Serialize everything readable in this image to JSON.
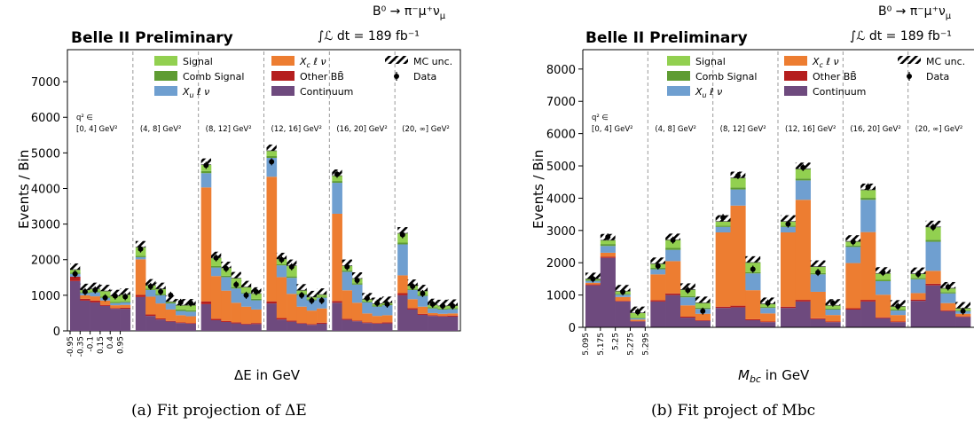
{
  "chart_data": [
    {
      "type": "bar",
      "title": "Belle II Preliminary",
      "decay": "B⁰ → π⁻μ⁺ν",
      "decay_sub": "μ",
      "luminosity": "∫ℒ dt = 189 fb⁻¹",
      "xlabel": "ΔE in GeV",
      "ylabel": "Events / Bin",
      "ylim": [
        0,
        7900
      ],
      "yticks": [
        0,
        1000,
        2000,
        3000,
        4000,
        5000,
        6000,
        7000
      ],
      "sub_ticks": [
        "-0.95",
        "-0.35",
        "-0.1",
        "0.15",
        "0.4",
        "0.95"
      ],
      "caption": "(a) Fit projection of ΔE",
      "q2_prefix": "q² ∈",
      "q2_bins": [
        "[0, 4] GeV²",
        "(4, 8] GeV²",
        "(8, 12] GeV²",
        "(12, 16] GeV²",
        "(16, 20] GeV²",
        "(20, ∞] GeV²"
      ],
      "series_names": [
        "Continuum",
        "Other BB̄",
        "Xc ℓ ν",
        "Xu ℓ ν",
        "Comb Signal",
        "Signal"
      ],
      "stack": [
        [
          [
            1400,
            120,
            0,
            80,
            40,
            80
          ],
          [
            850,
            50,
            100,
            60,
            30,
            60
          ],
          [
            800,
            50,
            120,
            110,
            30,
            70
          ],
          [
            700,
            30,
            120,
            80,
            30,
            160
          ],
          [
            620,
            20,
            80,
            60,
            30,
            170
          ],
          [
            620,
            30,
            80,
            70,
            30,
            190
          ]
        ],
        [
          [
            950,
            60,
            1000,
            60,
            40,
            240
          ],
          [
            420,
            40,
            500,
            190,
            40,
            90
          ],
          [
            320,
            30,
            420,
            230,
            40,
            140
          ],
          [
            260,
            20,
            320,
            170,
            30,
            20
          ],
          [
            220,
            20,
            200,
            120,
            40,
            120
          ],
          [
            200,
            20,
            190,
            130,
            40,
            140
          ]
        ],
        [
          [
            750,
            80,
            3200,
            400,
            60,
            180
          ],
          [
            300,
            40,
            1200,
            240,
            40,
            230
          ],
          [
            250,
            30,
            850,
            380,
            40,
            220
          ],
          [
            210,
            30,
            550,
            400,
            40,
            250
          ],
          [
            180,
            20,
            480,
            370,
            30,
            150
          ],
          [
            190,
            30,
            380,
            260,
            40,
            150
          ]
        ],
        [
          [
            770,
            60,
            3500,
            530,
            50,
            150
          ],
          [
            320,
            40,
            1150,
            330,
            30,
            150
          ],
          [
            260,
            30,
            750,
            450,
            40,
            300
          ],
          [
            200,
            20,
            460,
            330,
            30,
            100
          ],
          [
            170,
            20,
            380,
            290,
            30,
            60
          ],
          [
            200,
            30,
            400,
            300,
            30,
            60
          ]
        ],
        [
          [
            790,
            50,
            2450,
            870,
            50,
            150
          ],
          [
            310,
            30,
            800,
            520,
            40,
            130
          ],
          [
            270,
            20,
            500,
            510,
            40,
            130
          ],
          [
            220,
            20,
            250,
            310,
            30,
            60
          ],
          [
            200,
            20,
            200,
            260,
            30,
            50
          ],
          [
            210,
            30,
            200,
            280,
            30,
            40
          ]
        ],
        [
          [
            1000,
            60,
            500,
            870,
            50,
            260
          ],
          [
            600,
            40,
            250,
            260,
            30,
            90
          ],
          [
            450,
            30,
            200,
            300,
            30,
            110
          ],
          [
            420,
            20,
            60,
            130,
            30,
            70
          ],
          [
            400,
            20,
            60,
            120,
            30,
            70
          ],
          [
            400,
            30,
            60,
            120,
            30,
            70
          ]
        ]
      ],
      "data": [
        [
          1600,
          1100,
          1150,
          930,
          980,
          960
        ],
        [
          2300,
          1250,
          1100,
          1000,
          800,
          780
        ],
        [
          4650,
          2050,
          1750,
          1300,
          1000,
          1100
        ],
        [
          4750,
          2000,
          1800,
          1000,
          850,
          850
        ],
        [
          4400,
          1800,
          1420,
          920,
          780,
          750
        ],
        [
          2700,
          1250,
          1050,
          750,
          700,
          700
        ]
      ]
    },
    {
      "type": "bar",
      "title": "Belle II Preliminary",
      "decay": "B⁰ → π⁻μ⁺ν",
      "decay_sub": "μ",
      "luminosity": "∫ℒ dt = 189 fb⁻¹",
      "xlabel": "Mbc in GeV",
      "ylabel": "Events / Bin",
      "ylim": [
        0,
        8600
      ],
      "yticks": [
        0,
        1000,
        2000,
        3000,
        4000,
        5000,
        6000,
        7000,
        8000
      ],
      "sub_ticks": [
        "5.095",
        "5.175",
        "5.25",
        "5.275",
        "5.295"
      ],
      "caption": "(b) Fit project of Mbc",
      "q2_prefix": "q² ∈",
      "q2_bins": [
        "[0, 4] GeV²",
        "(4, 8] GeV²",
        "(8, 12] GeV²",
        "(12, 16] GeV²",
        "(16, 20] GeV²",
        "(20, ∞] GeV²"
      ],
      "series_names": [
        "Continuum",
        "Other BB̄",
        "Xc ℓ ν",
        "Xu ℓ ν",
        "Comb Signal",
        "Signal"
      ],
      "stack": [
        [
          [
            1300,
            30,
            50,
            60,
            30,
            30
          ],
          [
            2150,
            40,
            120,
            210,
            60,
            120
          ],
          [
            800,
            20,
            120,
            70,
            30,
            80
          ],
          [
            180,
            10,
            50,
            40,
            20,
            150
          ]
        ],
        [
          [
            800,
            40,
            800,
            160,
            40,
            130
          ],
          [
            1000,
            50,
            1000,
            350,
            60,
            250
          ],
          [
            300,
            30,
            350,
            250,
            40,
            200
          ],
          [
            200,
            20,
            200,
            150,
            40,
            150
          ]
        ],
        [
          [
            600,
            40,
            2300,
            170,
            40,
            130
          ],
          [
            620,
            50,
            3100,
            500,
            60,
            300
          ],
          [
            220,
            30,
            900,
            520,
            40,
            300
          ],
          [
            160,
            20,
            250,
            170,
            30,
            100
          ]
        ],
        [
          [
            600,
            40,
            2300,
            170,
            40,
            130
          ],
          [
            800,
            50,
            3100,
            600,
            60,
            300
          ],
          [
            250,
            30,
            820,
            540,
            40,
            200
          ],
          [
            160,
            20,
            200,
            170,
            30,
            100
          ]
        ],
        [
          [
            550,
            40,
            1400,
            500,
            40,
            130
          ],
          [
            800,
            50,
            2100,
            1000,
            60,
            250
          ],
          [
            280,
            30,
            700,
            420,
            40,
            200
          ],
          [
            160,
            20,
            200,
            140,
            30,
            100
          ]
        ],
        [
          [
            820,
            40,
            200,
            430,
            40,
            130
          ],
          [
            1300,
            50,
            400,
            900,
            60,
            400
          ],
          [
            500,
            30,
            220,
            300,
            40,
            120
          ],
          [
            320,
            20,
            80,
            80,
            30,
            60
          ]
        ]
      ],
      "data": [
        [
          1500,
          2800,
          1100,
          480
        ],
        [
          1900,
          2700,
          1150,
          500
        ],
        [
          3400,
          4700,
          1800,
          750
        ],
        [
          3200,
          4950,
          1700,
          750
        ],
        [
          2650,
          4350,
          1700,
          650
        ],
        [
          1650,
          3100,
          1250,
          500
        ]
      ]
    }
  ],
  "legend": {
    "col1": [
      {
        "name": "Signal",
        "color": "#92d050"
      },
      {
        "name": "Comb Signal",
        "color": "#5f9c33"
      },
      {
        "name": "X",
        "sub": "u",
        "tail": " ℓ ν",
        "color": "#6f9fd0"
      }
    ],
    "col2": [
      {
        "name": "X",
        "sub": "c",
        "tail": " ℓ ν",
        "color": "#ed7d31"
      },
      {
        "name": "Other BB̄",
        "color": "#b51e1e"
      },
      {
        "name": "Continuum",
        "color": "#6e4a7e"
      }
    ],
    "col3": [
      {
        "name": "MC unc."
      },
      {
        "name": "Data"
      }
    ]
  },
  "colors": {
    "continuum": "#6e4a7e",
    "other_bb": "#b51e1e",
    "xc": "#ed7d31",
    "xu": "#6f9fd0",
    "comb": "#5f9c33",
    "signal": "#92d050"
  }
}
